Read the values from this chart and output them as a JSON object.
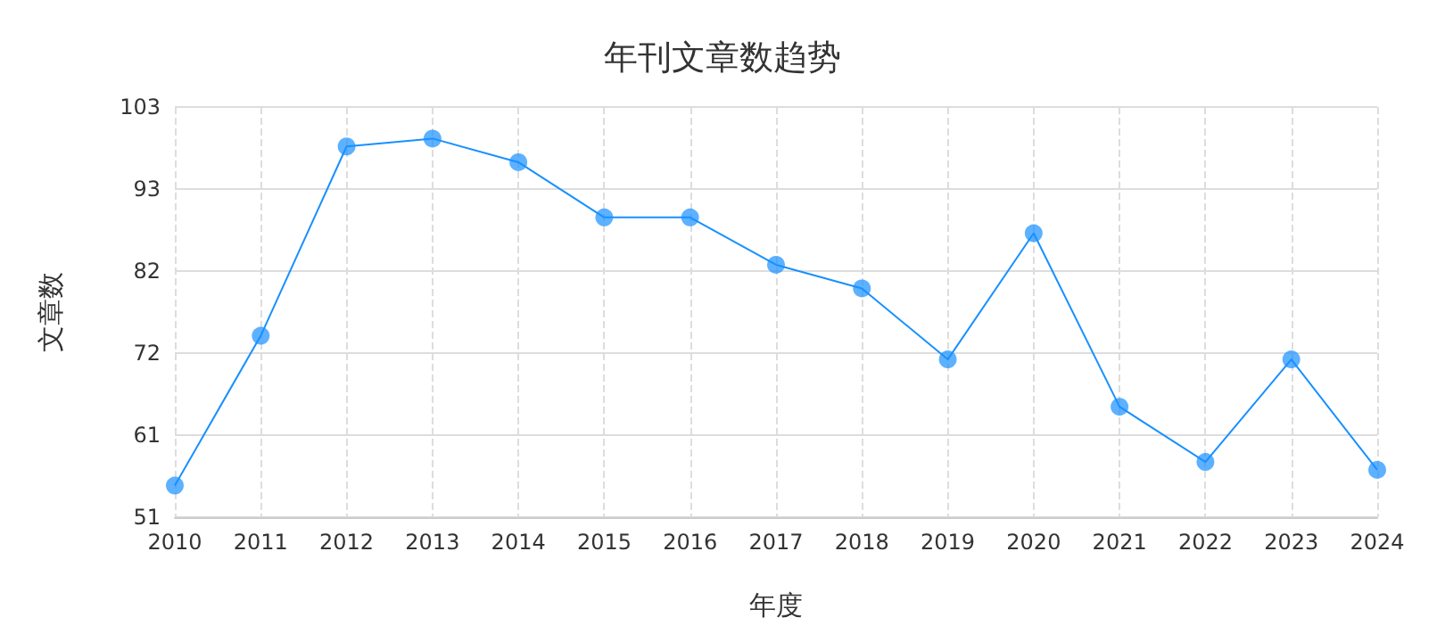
{
  "chart_data": {
    "type": "line",
    "title": "年刊文章数趋势",
    "xlabel": "年度",
    "ylabel": "文章数",
    "categories": [
      "2010",
      "2011",
      "2012",
      "2013",
      "2014",
      "2015",
      "2016",
      "2017",
      "2018",
      "2019",
      "2020",
      "2021",
      "2022",
      "2023",
      "2024"
    ],
    "series": [
      {
        "color": "#1890ff",
        "values": [
          55,
          74,
          98,
          99,
          96,
          89,
          89,
          83,
          80,
          71,
          87,
          65,
          58,
          71,
          57
        ]
      }
    ],
    "ylim": [
      51,
      103
    ],
    "yticks": [
      51,
      {
        "value": 61.4,
        "label": "61"
      },
      {
        "value": 71.8,
        "label": "72"
      },
      {
        "value": 82.2,
        "label": "82"
      },
      {
        "value": 92.6,
        "label": "93"
      },
      103
    ],
    "grid": true,
    "marker": "circle",
    "line_style": "solid"
  }
}
